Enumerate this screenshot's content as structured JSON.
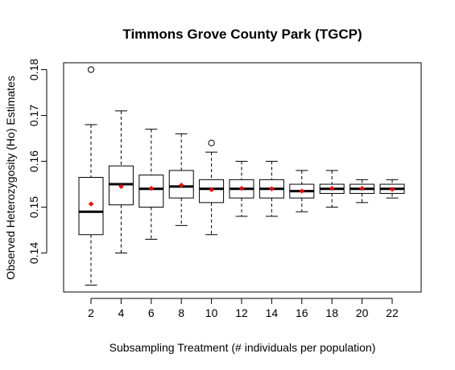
{
  "chart_data": {
    "type": "boxplot",
    "title": "Timmons Grove County Park (TGCP)",
    "xlabel": "Subsampling Treatment (# individuals per population)",
    "ylabel": "Observed Heterozygosity (Ho) Estimates",
    "categories": [
      "2",
      "4",
      "6",
      "8",
      "10",
      "12",
      "14",
      "16",
      "18",
      "20",
      "22"
    ],
    "y_ticks": [
      "0.14",
      "0.15",
      "0.16",
      "0.17",
      "0.18"
    ],
    "ylim": [
      0.1315,
      0.1815
    ],
    "mean_color": "#ff0000",
    "boxes": [
      {
        "category": "2",
        "whisker_low": 0.133,
        "q1": 0.144,
        "median": 0.149,
        "q3": 0.1565,
        "whisker_high": 0.168,
        "mean": 0.1507,
        "outliers": [
          0.18
        ]
      },
      {
        "category": "4",
        "whisker_low": 0.14,
        "q1": 0.1505,
        "median": 0.155,
        "q3": 0.159,
        "whisker_high": 0.171,
        "mean": 0.1545,
        "outliers": []
      },
      {
        "category": "6",
        "whisker_low": 0.143,
        "q1": 0.15,
        "median": 0.154,
        "q3": 0.157,
        "whisker_high": 0.167,
        "mean": 0.1541,
        "outliers": []
      },
      {
        "category": "8",
        "whisker_low": 0.146,
        "q1": 0.152,
        "median": 0.1545,
        "q3": 0.158,
        "whisker_high": 0.166,
        "mean": 0.1548,
        "outliers": []
      },
      {
        "category": "10",
        "whisker_low": 0.144,
        "q1": 0.151,
        "median": 0.154,
        "q3": 0.156,
        "whisker_high": 0.162,
        "mean": 0.1538,
        "outliers": [
          0.164
        ]
      },
      {
        "category": "12",
        "whisker_low": 0.148,
        "q1": 0.152,
        "median": 0.154,
        "q3": 0.156,
        "whisker_high": 0.16,
        "mean": 0.1541,
        "outliers": []
      },
      {
        "category": "14",
        "whisker_low": 0.148,
        "q1": 0.152,
        "median": 0.154,
        "q3": 0.156,
        "whisker_high": 0.16,
        "mean": 0.154,
        "outliers": []
      },
      {
        "category": "16",
        "whisker_low": 0.149,
        "q1": 0.152,
        "median": 0.1535,
        "q3": 0.155,
        "whisker_high": 0.158,
        "mean": 0.1535,
        "outliers": []
      },
      {
        "category": "18",
        "whisker_low": 0.15,
        "q1": 0.153,
        "median": 0.154,
        "q3": 0.155,
        "whisker_high": 0.158,
        "mean": 0.1541,
        "outliers": []
      },
      {
        "category": "20",
        "whisker_low": 0.151,
        "q1": 0.153,
        "median": 0.154,
        "q3": 0.155,
        "whisker_high": 0.156,
        "mean": 0.1541,
        "outliers": []
      },
      {
        "category": "22",
        "whisker_low": 0.152,
        "q1": 0.153,
        "median": 0.154,
        "q3": 0.155,
        "whisker_high": 0.156,
        "mean": 0.1539,
        "outliers": []
      }
    ]
  }
}
